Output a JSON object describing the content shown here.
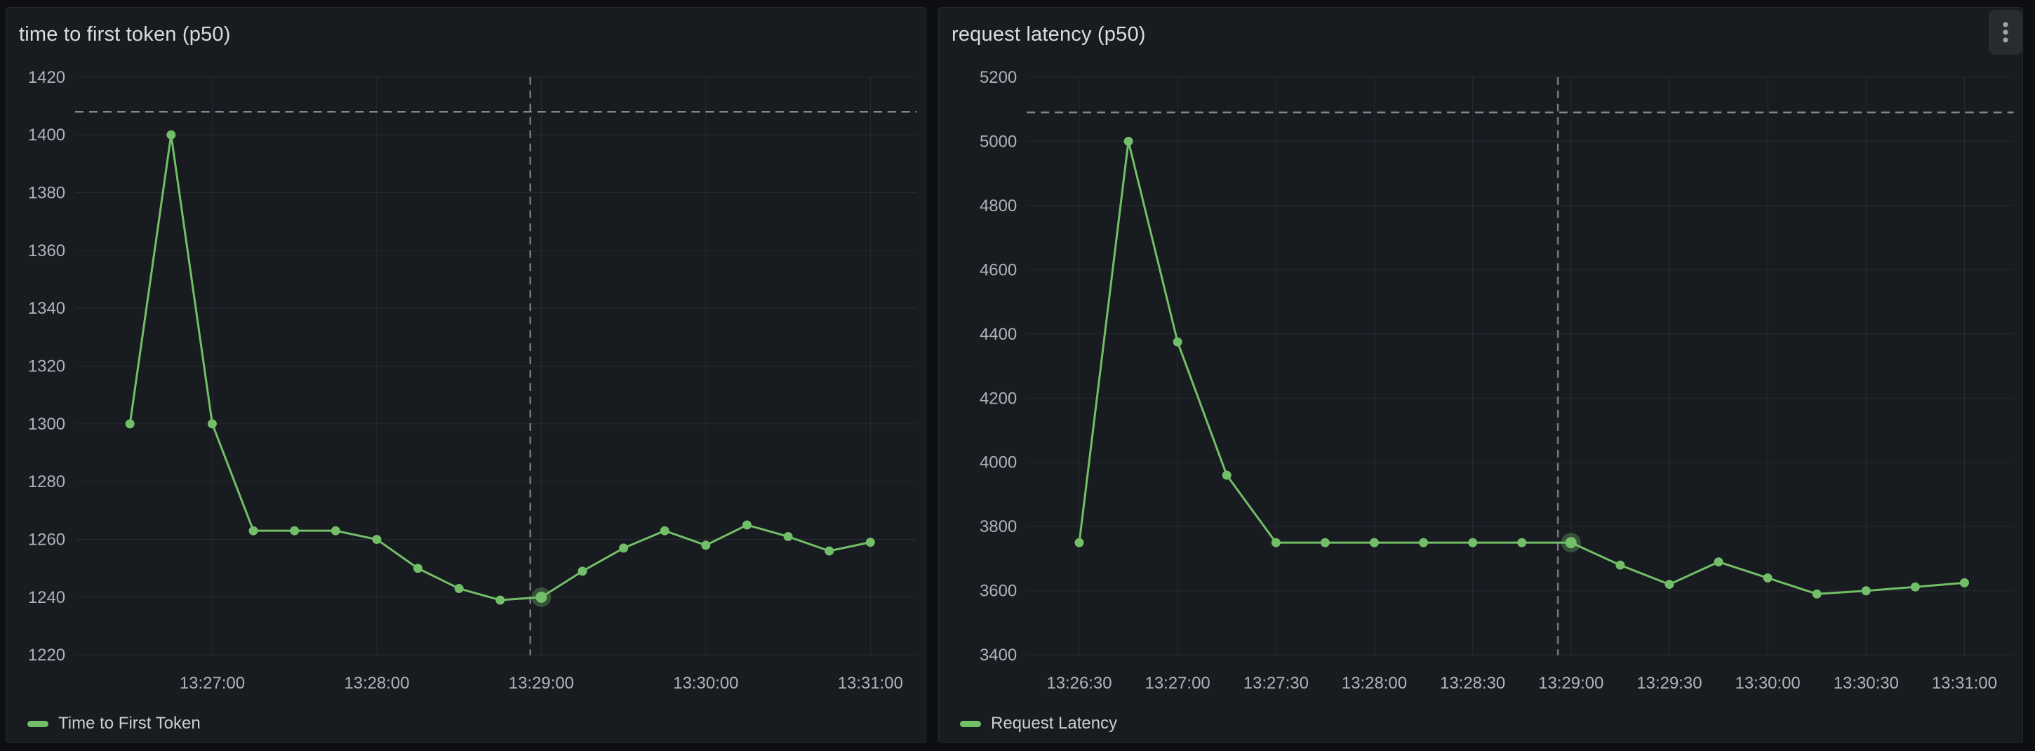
{
  "colors": {
    "page_bg": "#0e0f13",
    "panel_bg": "#181b1f",
    "panel_border": "#25272e",
    "grid_line": "rgba(204,204,220,0.09)",
    "axis_text": "#b0b2ba",
    "title_text": "#dcdde0",
    "legend_text": "#cdced3",
    "series_green": "#73BF69",
    "halo_green": "rgba(115,191,105,0.33)",
    "threshold_dash": "#84868e",
    "cursor_dash": "#76787e",
    "kebab_bg": "#282b30",
    "kebab_dots": "#a0a2a8"
  },
  "panels": [
    {
      "name": "time-to-first-token"
    },
    {
      "name": "request-latency",
      "menu": {
        "icon": "kebab-vertical-icon",
        "aria_label": "Panel menu"
      }
    }
  ],
  "chart_data": [
    {
      "type": "line",
      "title": "time to first token (p50)",
      "xlabel": "",
      "ylabel": "",
      "grid": true,
      "legend_position": "bottom-left",
      "x_range": [
        "13:26:10",
        "13:31:17"
      ],
      "y_range": [
        1220,
        1420
      ],
      "y_tick_step": 20,
      "y_tick_labels": [
        "1220",
        "1240",
        "1260",
        "1280",
        "1300",
        "1320",
        "1340",
        "1360",
        "1380",
        "1400",
        "1420"
      ],
      "x_tick_labels": [
        "13:27:00",
        "13:28:00",
        "13:29:00",
        "13:30:00",
        "13:31:00"
      ],
      "threshold_line": 1408,
      "cursor_time": "13:28:56",
      "highlight_time": "13:29:00",
      "series": [
        {
          "name": "Time to First Token",
          "color": "#73BF69",
          "x": [
            "13:26:30",
            "13:26:45",
            "13:27:00",
            "13:27:15",
            "13:27:30",
            "13:27:45",
            "13:28:00",
            "13:28:15",
            "13:28:30",
            "13:28:45",
            "13:29:00",
            "13:29:15",
            "13:29:30",
            "13:29:45",
            "13:30:00",
            "13:30:15",
            "13:30:30",
            "13:30:45",
            "13:31:00"
          ],
          "values": [
            1300,
            1400,
            1300,
            1263,
            1263,
            1263,
            1260,
            1250,
            1243,
            1239,
            1240,
            1249,
            1257,
            1263,
            1258,
            1265,
            1261,
            1256,
            1259
          ]
        }
      ]
    },
    {
      "type": "line",
      "title": "request latency (p50)",
      "xlabel": "",
      "ylabel": "",
      "grid": true,
      "legend_position": "bottom-left",
      "x_range": [
        "13:26:14",
        "13:31:15"
      ],
      "y_range": [
        3400,
        5200
      ],
      "y_tick_step": 200,
      "y_tick_labels": [
        "3400",
        "3600",
        "3800",
        "4000",
        "4200",
        "4400",
        "4600",
        "4800",
        "5000",
        "5200"
      ],
      "x_tick_labels": [
        "13:26:30",
        "13:27:00",
        "13:27:30",
        "13:28:00",
        "13:28:30",
        "13:29:00",
        "13:29:30",
        "13:30:00",
        "13:30:30",
        "13:31:00"
      ],
      "threshold_line": 5090,
      "cursor_time": "13:28:56",
      "highlight_time": "13:29:00",
      "series": [
        {
          "name": "Request Latency",
          "color": "#73BF69",
          "x": [
            "13:26:30",
            "13:26:45",
            "13:27:00",
            "13:27:15",
            "13:27:30",
            "13:27:45",
            "13:28:00",
            "13:28:15",
            "13:28:30",
            "13:28:45",
            "13:29:00",
            "13:29:15",
            "13:29:30",
            "13:29:45",
            "13:30:00",
            "13:30:15",
            "13:30:30",
            "13:30:45",
            "13:31:00"
          ],
          "values": [
            3750,
            5000,
            4375,
            3960,
            3750,
            3750,
            3750,
            3750,
            3750,
            3750,
            3750,
            3680,
            3620,
            3690,
            3640,
            3590,
            3600,
            3612,
            3625
          ]
        }
      ]
    }
  ]
}
